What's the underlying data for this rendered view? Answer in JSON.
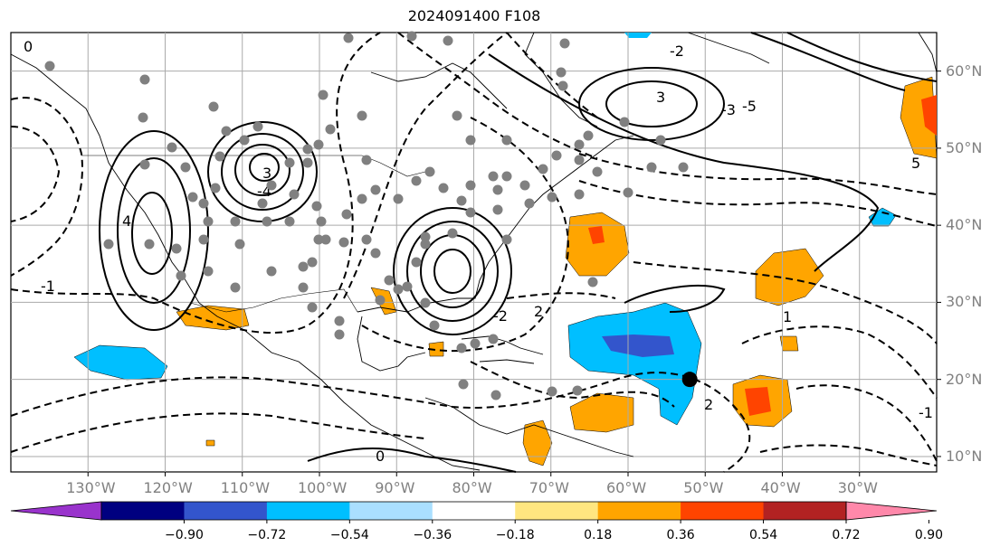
{
  "title": "2024091400 F108",
  "map": {
    "projection": "PlateCarree",
    "extent_lon": [
      -140,
      -20
    ],
    "extent_lat": [
      8,
      65
    ],
    "lon_ticks": [
      {
        "value": -130,
        "label": "130°W"
      },
      {
        "value": -120,
        "label": "120°W"
      },
      {
        "value": -110,
        "label": "110°W"
      },
      {
        "value": -100,
        "label": "100°W"
      },
      {
        "value": -90,
        "label": "90°W"
      },
      {
        "value": -80,
        "label": "80°W"
      },
      {
        "value": -70,
        "label": "70°W"
      },
      {
        "value": -60,
        "label": "60°W"
      },
      {
        "value": -50,
        "label": "50°W"
      },
      {
        "value": -40,
        "label": "40°W"
      },
      {
        "value": -30,
        "label": "30°W"
      }
    ],
    "lat_ticks": [
      {
        "value": 60,
        "label": "60°N"
      },
      {
        "value": 50,
        "label": "50°N"
      },
      {
        "value": 40,
        "label": "40°N"
      },
      {
        "value": 30,
        "label": "30°N"
      },
      {
        "value": 20,
        "label": "20°N"
      },
      {
        "value": 10,
        "label": "10°N"
      }
    ],
    "grid": true,
    "marker": {
      "lon": -52,
      "lat": 20,
      "color": "#000000"
    },
    "contour_labels": [
      "0",
      "-1",
      "2",
      "-2",
      "3",
      "-3",
      "-4",
      "4",
      "-5",
      "5",
      "1",
      "-1",
      "0",
      "2",
      "-2",
      "3"
    ]
  },
  "colorbar": {
    "orientation": "horizontal",
    "extend": "both",
    "ticks": [
      "−0.90",
      "−0.72",
      "−0.54",
      "−0.36",
      "−0.18",
      "0.18",
      "0.36",
      "0.54",
      "0.72",
      "0.90"
    ],
    "colors": [
      "#9933cc",
      "#000080",
      "#3355cc",
      "#00bfff",
      "#aadfff",
      "#ffffff",
      "#ffe680",
      "#ffa500",
      "#ff4400",
      "#b22222",
      "#ff88aa"
    ]
  }
}
